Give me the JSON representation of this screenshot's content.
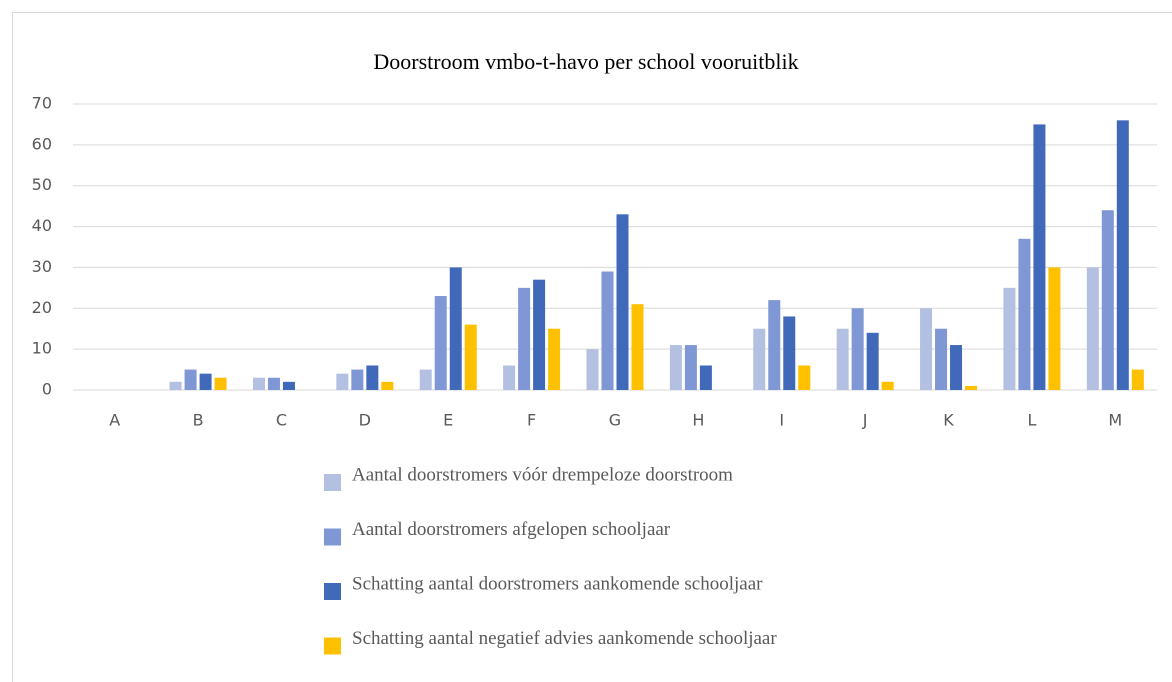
{
  "chart_data": {
    "type": "bar",
    "title": "Doorstroom vmbo-t-havo per school vooruitblik",
    "categories": [
      "A",
      "B",
      "C",
      "D",
      "E",
      "F",
      "G",
      "H",
      "I",
      "J",
      "K",
      "L",
      "M"
    ],
    "series": [
      {
        "name": "Aantal doorstromers vóór drempeloze doorstroom",
        "color": "#b4c0e2",
        "values": [
          0,
          2,
          3,
          4,
          5,
          6,
          10,
          11,
          15,
          15,
          20,
          25,
          30
        ]
      },
      {
        "name": "Aantal doorstromers afgelopen schooljaar",
        "color": "#7f97d4",
        "values": [
          0,
          5,
          3,
          5,
          23,
          25,
          29,
          11,
          22,
          20,
          15,
          37,
          44
        ]
      },
      {
        "name": "Schatting aantal doorstromers aankomende schooljaar",
        "color": "#4169ba",
        "values": [
          0,
          4,
          2,
          6,
          30,
          27,
          43,
          6,
          18,
          14,
          11,
          65,
          66
        ]
      },
      {
        "name": "Schatting aantal negatief advies aankomende schooljaar",
        "color": "#ffc000",
        "values": [
          0,
          3,
          0,
          2,
          16,
          15,
          21,
          0,
          6,
          2,
          1,
          30,
          5
        ]
      }
    ],
    "ylim": [
      0,
      70
    ],
    "yticks": [
      0,
      10,
      20,
      30,
      40,
      50,
      60,
      70
    ],
    "grid": true,
    "legend": "bottom"
  }
}
